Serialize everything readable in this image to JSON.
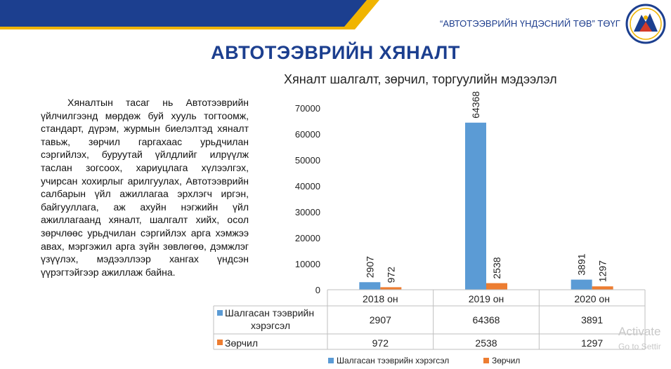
{
  "header": {
    "org_name": "“АВТОТЭЭВРИЙН ҮНДЭСНИЙ ТӨВ” ТӨҮГ",
    "logo_icon": "mountain-emblem-icon"
  },
  "slide": {
    "title": "АВТОТЭЭВРИЙН ХЯНАЛТ",
    "body": "Хяналтын тасаг нь Автотээврийн үйлчилгээнд мөрдөж буй хууль тогтоомж, стандарт, дүрэм, журмын биелэлтэд хяналт тавьж, зөрчил гаргахаас урьдчилан сэргийлэх, буруутай үйлдлийг илрүүлж таслан зогсоох, хариуцлага хүлээлгэх, учирсан хохирлыг арилгуулах, Автотээврийн салбарын үйл ажиллагаа эрхлэгч иргэн, байгууллага, аж ахуйн нэгжийн үйл ажиллагаанд хяналт, шалгалт хийх, осол зөрчлөөс урьдчилан сэргийлэх арга хэмжээ авах, мэргэжил арга зүйн зөвлөгөө, дэмжлэг үзүүлэх, мэдээллээр хангах үндсэн үүрэгтэйгээр ажиллаж байна."
  },
  "watermark": {
    "line1": "Activate",
    "line2": "Go to Settir"
  },
  "colors": {
    "series1": "#5b9bd5",
    "series2": "#ed7d31",
    "title_blue": "#1c3f8f",
    "accent_yellow": "#f0b400"
  },
  "chart_data": {
    "type": "bar",
    "title": "Хяналт шалгалт, зөрчил, торгуулийн мэдээлэл",
    "categories": [
      "2018 он",
      "2019 он",
      "2020 он"
    ],
    "series": [
      {
        "name": "Шалгасан тээврийн хэрэгсэл",
        "values": [
          2907,
          64368,
          3891
        ],
        "color": "#5b9bd5"
      },
      {
        "name": "Зөрчил",
        "values": [
          972,
          2538,
          1297
        ],
        "color": "#ed7d31"
      }
    ],
    "ylim": [
      0,
      70000
    ],
    "yticks": [
      0,
      10000,
      20000,
      30000,
      40000,
      50000,
      60000,
      70000
    ],
    "data_table": true,
    "legend": "bottom",
    "grid": false
  }
}
